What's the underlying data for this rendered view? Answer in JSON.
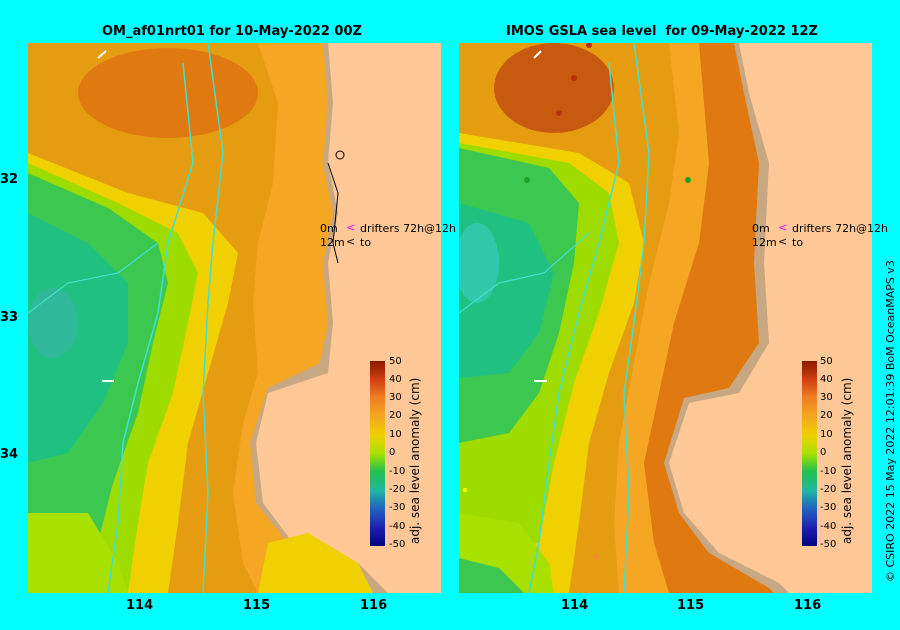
{
  "panels": [
    {
      "title": "OM_af01nrt01 for 10-May-2022 00Z",
      "legend": {
        "line1": "0m",
        "line1_label": "drifters 72h@12h",
        "line2": "12m",
        "line2_label": "to"
      },
      "colorbar": {
        "title": "adj. sea level anomaly (cm)",
        "ticks": [
          "50",
          "40",
          "30",
          "20",
          "10",
          "0",
          "-10",
          "-20",
          "-30",
          "-40",
          "-50"
        ]
      }
    },
    {
      "title": "IMOS GSLA sea level  for 09-May-2022 12Z",
      "legend": {
        "line1": "0m",
        "line1_label": "drifters 72h@12h",
        "line2": "12m",
        "line2_label": "to"
      },
      "colorbar": {
        "title": "adj. sea level anomaly (cm)",
        "ticks": [
          "50",
          "40",
          "30",
          "20",
          "10",
          "0",
          "-10",
          "-20",
          "-30",
          "-40",
          "-50"
        ]
      }
    }
  ],
  "axes": {
    "y_ticks": [
      "32",
      "33",
      "34"
    ],
    "x_ticks": [
      "114",
      "115",
      "116"
    ]
  },
  "colors": {
    "background": "#00ffff",
    "land": "#ffc896",
    "coast": "#c8a882",
    "contours": "#40e0d0"
  },
  "credit": "© CSIRO 2022   15 May 2022 12:01:39 BoM OceanMAPS v3"
}
